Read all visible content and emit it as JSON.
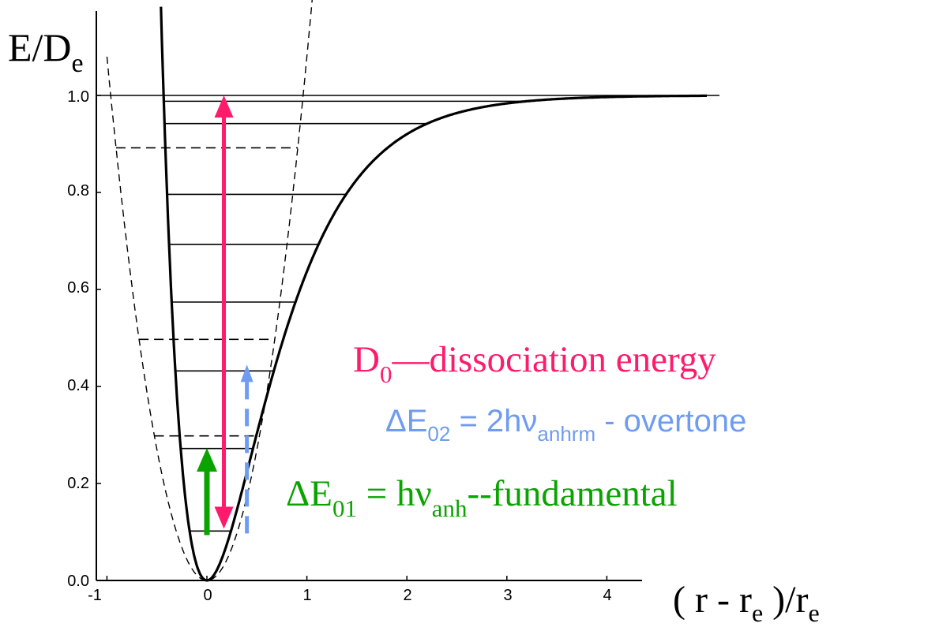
{
  "y_axis_label": {
    "main": "E/D",
    "sub": "e"
  },
  "x_axis_label": {
    "open": "( r - r",
    "sub1": "e",
    "mid": " )/r",
    "sub2": "e"
  },
  "y_ticks": [
    "0.0",
    "0.2",
    "0.4",
    "0.6",
    "0.8",
    "1.0"
  ],
  "x_ticks": [
    "-1",
    "0",
    "1",
    "2",
    "3",
    "4"
  ],
  "annotations": {
    "d0": {
      "main": "D",
      "sub": "0",
      "rest": "—dissociation energy",
      "color": "#ff1a6b"
    },
    "overtone": {
      "pre": "ΔE",
      "sub1": "02",
      "mid": " = 2hν",
      "sub2": "anhrm",
      "rest": " - overtone",
      "color": "#6f9cf0"
    },
    "fundamental": {
      "pre": "ΔE",
      "sub1": "01",
      "mid": " = hν",
      "sub2": "anh",
      "rest": "--fundamental",
      "color": "#0aa300"
    }
  },
  "diagram": {
    "morse_levels": [
      0.102,
      0.272,
      0.432,
      0.574,
      0.693,
      0.796,
      0.942,
      0.988
    ],
    "harmonic_levels": [
      0.298,
      0.497,
      0.892
    ],
    "dissociation_limit": 1.0,
    "arrows": {
      "dissociation": {
        "from": 0.1,
        "to": 1.0
      },
      "fundamental": {
        "from": 0.1,
        "to": 0.27
      },
      "overtone": {
        "from": 0.1,
        "to": 0.44
      }
    }
  }
}
